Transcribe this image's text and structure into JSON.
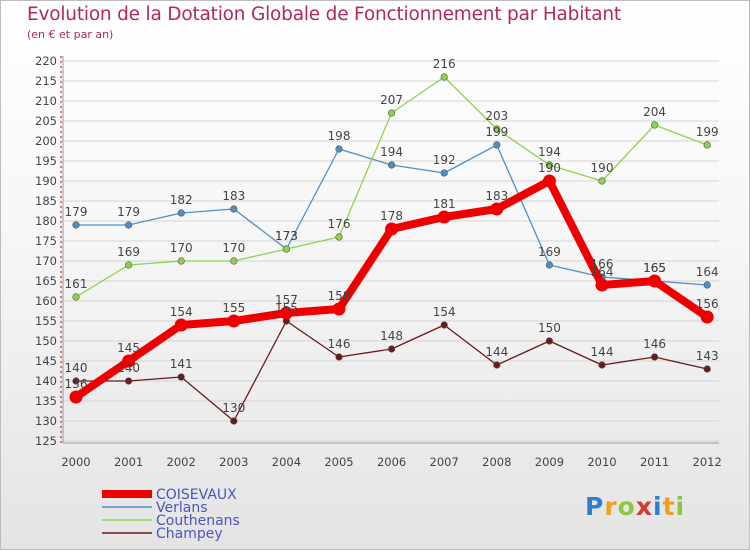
{
  "header": {
    "title": "Evolution de la Dotation Globale de Fonctionnement par Habitant",
    "subtitle": "(en € et par an)"
  },
  "chart_data": {
    "type": "line",
    "categories": [
      "2000",
      "2001",
      "2002",
      "2003",
      "2004",
      "2005",
      "2006",
      "2007",
      "2008",
      "2009",
      "2010",
      "2011",
      "2012"
    ],
    "ylim": [
      125,
      220
    ],
    "yticks": [
      125,
      130,
      135,
      140,
      145,
      150,
      155,
      160,
      165,
      170,
      175,
      180,
      185,
      190,
      195,
      200,
      205,
      210,
      215,
      220
    ],
    "series": [
      {
        "name": "Verlans",
        "color": "#4f8fc6",
        "values": [
          179,
          179,
          182,
          183,
          173,
          198,
          194,
          192,
          199,
          169,
          166,
          165,
          164
        ]
      },
      {
        "name": "Couthenans",
        "color": "#8ed24a",
        "values": [
          161,
          169,
          170,
          170,
          173,
          176,
          207,
          216,
          203,
          194,
          190,
          204,
          199
        ]
      },
      {
        "name": "Champey",
        "color": "#6b1a1a",
        "values": [
          140,
          140,
          141,
          130,
          155,
          146,
          148,
          154,
          144,
          150,
          144,
          146,
          143
        ]
      },
      {
        "name": "COISEVAUX",
        "color": "#ee0000",
        "values": [
          136,
          145,
          154,
          155,
          157,
          158,
          178,
          181,
          183,
          190,
          164,
          165,
          156
        ]
      }
    ],
    "legend": [
      "COISEVAUX",
      "Verlans",
      "Couthenans",
      "Champey"
    ],
    "legend_colors": [
      "#ee0000",
      "#4f8fc6",
      "#8ed24a",
      "#6b1a1a"
    ],
    "legend_text_color": "#4a55b8",
    "legend_position": "bottom-left"
  },
  "logo": {
    "letters": [
      "P",
      "r",
      "o",
      "x",
      "i",
      "t",
      "i"
    ],
    "colors": [
      "#2c7fd0",
      "#f0a020",
      "#8dc63f",
      "#d63a2f",
      "#2c7fd0",
      "#f0a020",
      "#8dc63f"
    ]
  }
}
